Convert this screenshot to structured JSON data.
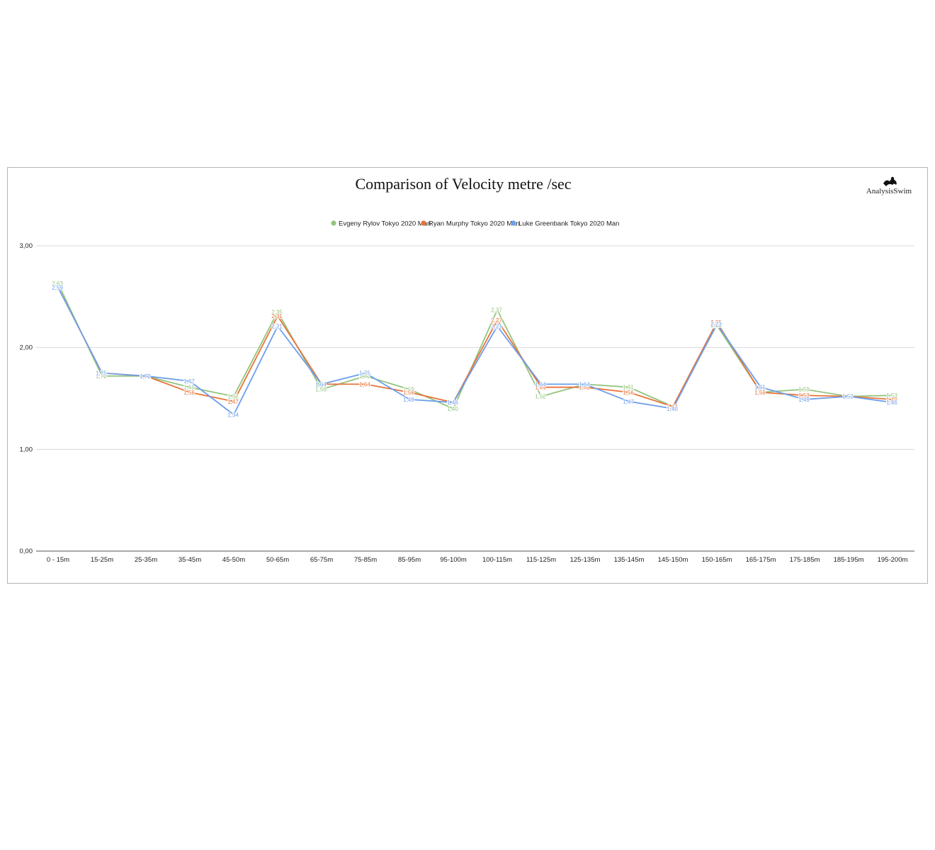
{
  "chart_data": {
    "type": "line",
    "title": "Comparison of Velocity metre /sec",
    "brand": "AnalysisSwim",
    "brand_icon": "swimmer-logo-icon",
    "xlabel": "",
    "ylabel": "",
    "ylim": [
      0,
      3
    ],
    "yticks": [
      "0,00",
      "1,00",
      "2,00",
      "3,00"
    ],
    "grid": true,
    "legend_position": "top-center",
    "categories": [
      "0 - 15m",
      "15-25m",
      "25-35m",
      "35-45m",
      "45-50m",
      "50-65m",
      "65-75m",
      "75-85m",
      "85-95m",
      "95-100m",
      "100-115m",
      "115-125m",
      "125-135m",
      "135-145m",
      "145-150m",
      "150-165m",
      "165-175m",
      "175-185m",
      "185-195m",
      "195-200m"
    ],
    "series": [
      {
        "name": "Evgeny Rylov Tokyo 2020 Man",
        "color": "#93c47d",
        "values": [
          2.63,
          1.72,
          1.72,
          1.61,
          1.52,
          2.35,
          1.59,
          1.72,
          1.59,
          1.4,
          2.37,
          1.52,
          1.64,
          1.61,
          1.42,
          2.22,
          1.56,
          1.59,
          1.52,
          1.53
        ],
        "labels": [
          "2,63",
          "1,72",
          "1,72",
          "1,61",
          "1,52",
          "2,35",
          "1,59",
          "1,72",
          "1,59",
          "1,40",
          "2,37",
          "1,52",
          "1,64",
          "1,61",
          "1,42",
          "2,22",
          "1,56",
          "1,59",
          "1,52",
          "1,53"
        ]
      },
      {
        "name": "Ryan Murphy Tokyo 2020 Man",
        "color": "#e8733a",
        "values": [
          2.59,
          1.75,
          1.72,
          1.56,
          1.47,
          2.31,
          1.64,
          1.64,
          1.56,
          1.46,
          2.27,
          1.61,
          1.61,
          1.56,
          1.42,
          2.25,
          1.56,
          1.53,
          1.52,
          1.49
        ],
        "labels": [
          "2,59",
          "1,75",
          "1,72",
          "1,56",
          "1,47",
          "2,31",
          "1,64",
          "1,64",
          "1,56",
          "1,46",
          "2,27",
          "1,61",
          "1,61",
          "1,56",
          "1,42",
          "2,25",
          "1,56",
          "1,53",
          "1,52",
          "1,49"
        ]
      },
      {
        "name": "Luke Greenbank Tokyo 2020 Man",
        "color": "#6d9eeb",
        "values": [
          2.59,
          1.75,
          1.72,
          1.67,
          1.34,
          2.21,
          1.64,
          1.75,
          1.49,
          1.46,
          2.21,
          1.64,
          1.64,
          1.47,
          1.4,
          2.23,
          1.61,
          1.49,
          1.52,
          1.46
        ],
        "labels": [
          "2,59",
          "1,75",
          "1,72",
          "1,67",
          "1,34",
          "2,21",
          "1,64",
          "1,75",
          "1,49",
          "1,46",
          "2,21",
          "1,64",
          "1,64",
          "1,47",
          "1,40",
          "2,23",
          "1,61",
          "1,49",
          "1,52",
          "1,46"
        ]
      }
    ]
  }
}
